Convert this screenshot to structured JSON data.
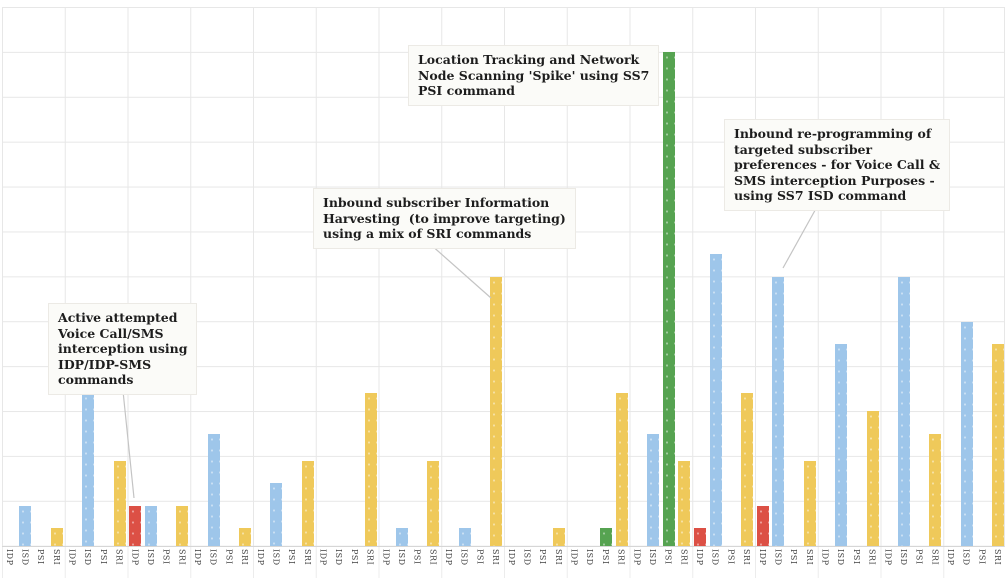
{
  "chart_data": {
    "type": "bar",
    "title": "",
    "x_axis": {
      "group_count": 16,
      "slot_labels": [
        "IDP",
        "ISD",
        "PSI",
        "SRI"
      ],
      "label_rotation": "vertical, reads top-to-bottom"
    },
    "y_axis": {
      "tick_labels_visible": false,
      "unit": "relative gridline units (no numeric scale shown)",
      "ylim": [
        0,
        12
      ],
      "grid": true
    },
    "legend_position": "none",
    "series": [
      {
        "name": "IDP",
        "color": "#DC5045",
        "values": [
          0,
          0,
          0.9,
          0,
          0,
          0,
          0,
          0,
          0,
          0,
          0,
          0.4,
          0.9,
          0,
          0,
          0
        ]
      },
      {
        "name": "ISD",
        "color": "#9EC6EA",
        "values": [
          0.9,
          3.4,
          0.9,
          2.5,
          1.4,
          0,
          0.4,
          0.4,
          0,
          0,
          2.5,
          6.5,
          6,
          4.5,
          6,
          5
        ]
      },
      {
        "name": "PSI",
        "color": "#56A351",
        "values": [
          0,
          0,
          0,
          0,
          0,
          0,
          0,
          0,
          0,
          0.4,
          11,
          0,
          0,
          0,
          0,
          0
        ]
      },
      {
        "name": "SRI",
        "color": "#EFC95A",
        "values": [
          0.4,
          1.9,
          0.9,
          0.4,
          1.9,
          3.4,
          1.9,
          6,
          0.4,
          3.4,
          1.9,
          3.4,
          1.9,
          3,
          2.5,
          4.5
        ]
      }
    ],
    "annotations": [
      {
        "text": "Active attempted\nVoice Call/SMS\ninterception using\nIDP/IDP-SMS\ncommands",
        "target": "red IDP bar, group 3"
      },
      {
        "text": "Inbound subscriber Information\nHarvesting  (to improve targeting)\nusing a mix of SRI commands",
        "target": "tall yellow SRI bar, group 8"
      },
      {
        "text": "Location Tracking and Network\nNode Scanning 'Spike' using SS7\nPSI command",
        "target": "tall green PSI spike bar, group 11"
      },
      {
        "text": "Inbound re-programming of\ntargeted subscriber\npreferences - for Voice Call &\nSMS interception Purposes -\nusing SS7 ISD command",
        "target": "tall blue ISD bar, group 13"
      }
    ],
    "colors": {
      "gridline": "#e7e7e7",
      "axis_line": "#d6d6d6",
      "label_text": "#3f3f3f",
      "annotation_bg": "#fbfbf8",
      "callout_line": "#c4c4c4"
    }
  }
}
